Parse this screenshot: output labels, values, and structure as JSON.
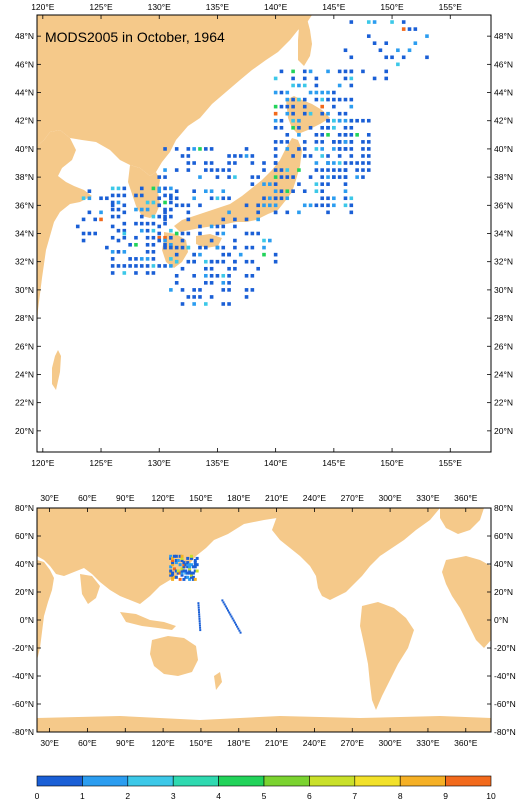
{
  "title": "MODS2005 in October, 1964",
  "top_map": {
    "lon_labels": [
      "120°E",
      "125°E",
      "130°E",
      "135°E",
      "140°E",
      "145°E",
      "150°E",
      "155°E"
    ],
    "lat_labels": [
      "48°N",
      "46°N",
      "44°N",
      "42°N",
      "40°N",
      "38°N",
      "36°N",
      "34°N",
      "32°N",
      "30°N",
      "28°N",
      "26°N",
      "24°N",
      "22°N",
      "20°N"
    ],
    "lon_range": [
      119.5,
      158.5
    ],
    "lat_range": [
      18.5,
      49.5
    ]
  },
  "bottom_map": {
    "lon_labels": [
      "30°E",
      "60°E",
      "90°E",
      "120°E",
      "150°E",
      "180°E",
      "210°E",
      "240°E",
      "270°E",
      "300°E",
      "330°E",
      "360°E"
    ],
    "lat_labels": [
      "80°N",
      "60°N",
      "40°N",
      "20°N",
      "0°N",
      "-20°N",
      "-40°N",
      "-60°N",
      "-80°N"
    ],
    "lon_range": [
      20,
      380
    ],
    "lat_range": [
      -80,
      80
    ]
  },
  "colorbar": {
    "labels": [
      "0",
      "1",
      "2",
      "3",
      "4",
      "5",
      "6",
      "7",
      "8",
      "9",
      "10"
    ],
    "colors": [
      "#1a5fd6",
      "#2b9df0",
      "#3cc8e8",
      "#2fd9b0",
      "#22d35a",
      "#7bd330",
      "#c9e02a",
      "#f2e12a",
      "#f5b025",
      "#f26a1c"
    ]
  },
  "colors": {
    "land": "#f5c98a",
    "ocean": "#ffffff"
  }
}
